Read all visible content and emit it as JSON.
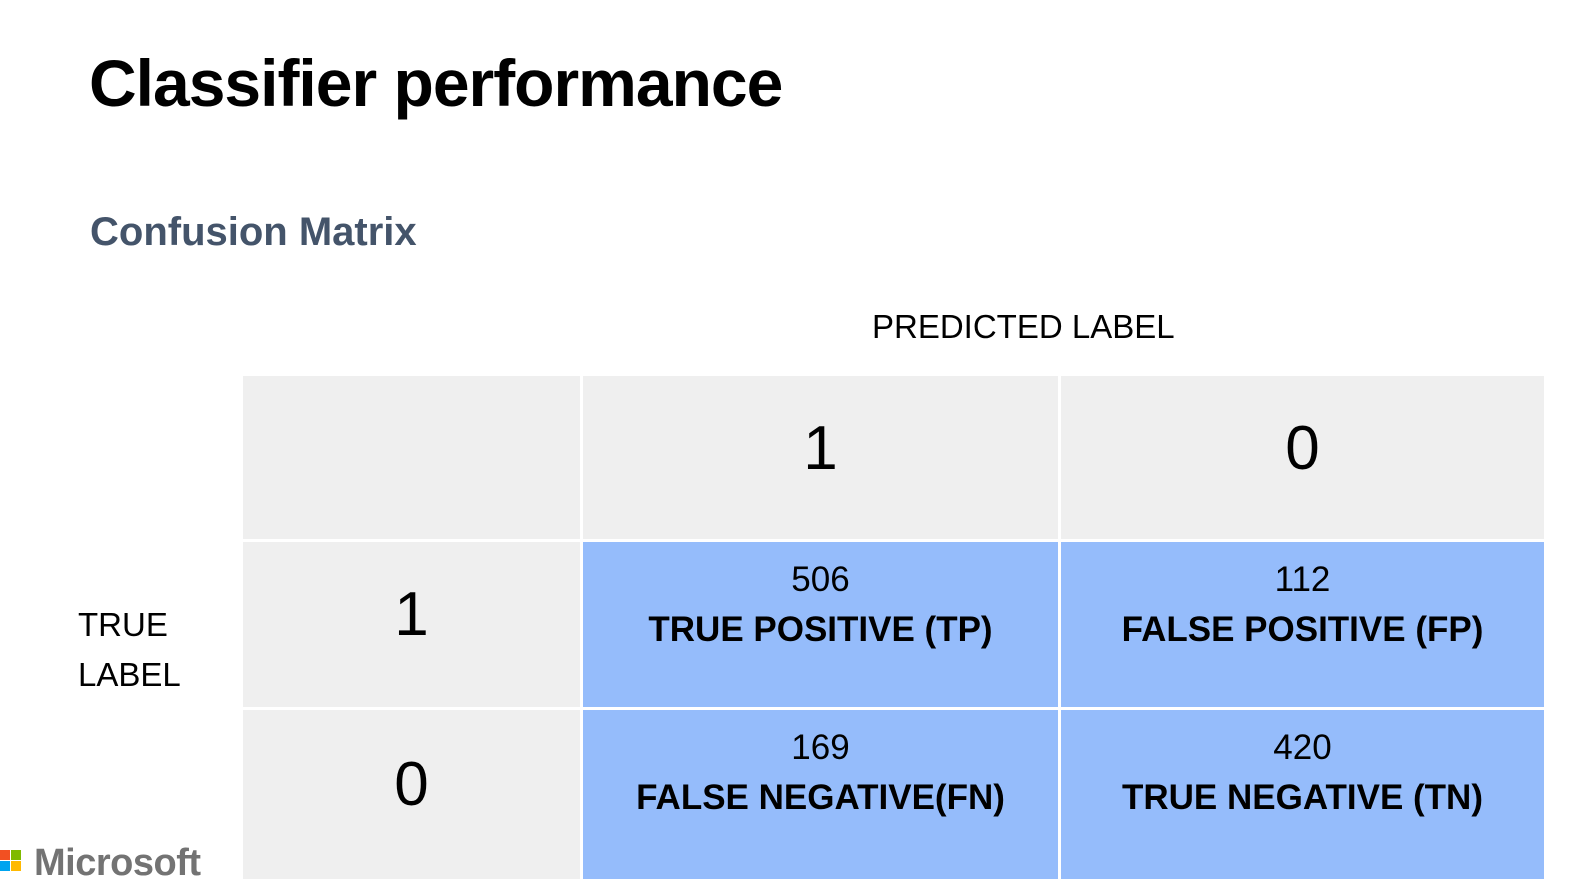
{
  "slide": {
    "title": "Classifier performance",
    "subtitle": "Confusion Matrix"
  },
  "matrix": {
    "predicted_axis_label": "PREDICTED LABEL",
    "true_axis_label_line1": "TRUE",
    "true_axis_label_line2": "LABEL",
    "column_headers": [
      "1",
      "0"
    ],
    "row_headers": [
      "1",
      "0"
    ],
    "cells": [
      [
        {
          "count": "506",
          "name": "TRUE POSITIVE (TP)"
        },
        {
          "count": "112",
          "name": "FALSE POSITIVE (FP)"
        }
      ],
      [
        {
          "count": "169",
          "name": "FALSE NEGATIVE(FN)"
        },
        {
          "count": "420",
          "name": "TRUE NEGATIVE (TN)"
        }
      ]
    ],
    "colors": {
      "header_fill": "#efefef",
      "value_fill": "#95bcfb",
      "subtitle_color": "#44546a"
    }
  },
  "footer": {
    "logo_text": "Microsoft",
    "logo_colors": [
      "#f25022",
      "#7fba00",
      "#00a4ef",
      "#ffb900"
    ]
  }
}
